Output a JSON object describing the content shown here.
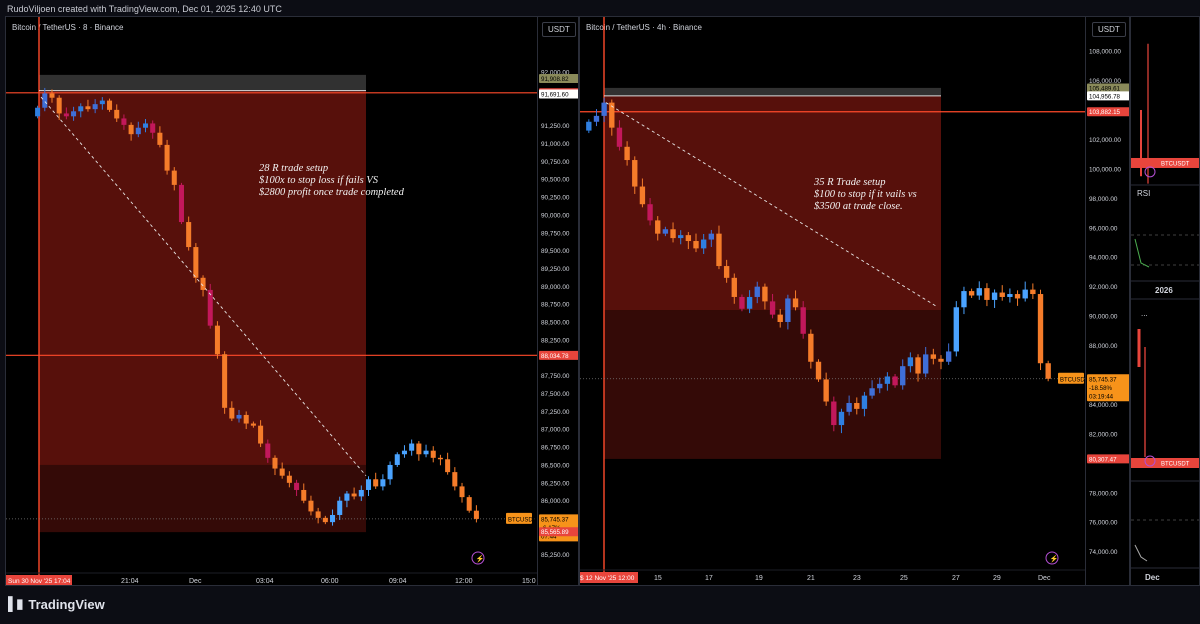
{
  "header": {
    "credit": "RudoViljoen created with TradingView.com, Dec 01, 2025 12:40 UTC"
  },
  "footer": {
    "brand": "TradingView"
  },
  "chart_data": [
    {
      "type": "candlestick",
      "title": "Bitcoin / TetherUS · 8 · Binance",
      "currency_label": "USDT",
      "y_ticks": [
        "92,000.00",
        "91,908.82",
        "91,708.89",
        "91,691.60",
        "91,250.00",
        "91,000.00",
        "90,750.00",
        "90,500.00",
        "90,250.00",
        "90,000.00",
        "89,750.00",
        "89,500.00",
        "89,250.00",
        "89,000.00",
        "88,750.00",
        "88,500.00",
        "88,250.00",
        "88,034.78",
        "87,750.00",
        "87,500.00",
        "87,250.00",
        "87,000.00",
        "86,750.00",
        "86,500.00",
        "86,250.00",
        "86,000.00",
        "85,745.37",
        "85,565.89",
        "85,250.00"
      ],
      "x_ticks": [
        "Sun 30 Nov '25   17:04",
        "21:04",
        "Dec",
        "03:04",
        "06:00",
        "09:04",
        "12:00",
        "15:0"
      ],
      "ylim": [
        85100,
        92350
      ],
      "price_labels": [
        {
          "text": "91,908.82",
          "bg": "#8a8a5a"
        },
        {
          "text": "91,708.89",
          "bg": "#e8453c"
        },
        {
          "text": "91,691.60",
          "bg": "#ffffff"
        },
        {
          "text": "88,034.78",
          "bg": "#e8453c"
        },
        {
          "text": "85,745.37\n-6.17%\n07:44",
          "bg": "#f7931a"
        },
        {
          "text": "85,565.89",
          "bg": "#e8453c"
        }
      ],
      "ticker": "BTCUSDT",
      "annotation": "28 R trade setup\n$100x to stop loss if fails VS\n$2800 profit once trade completed",
      "close_series": [
        91500,
        91700,
        91640,
        91420,
        91380,
        91450,
        91520,
        91480,
        91550,
        91600,
        91470,
        91350,
        91260,
        91130,
        91220,
        91280,
        91150,
        90980,
        90620,
        90420,
        89900,
        89550,
        89120,
        88950,
        88450,
        88050,
        87300,
        87150,
        87200,
        87080,
        87050,
        86800,
        86600,
        86450,
        86350,
        86250,
        86150,
        86000,
        85850,
        85760,
        85700,
        85800,
        86000,
        86100,
        86060,
        86150,
        86300,
        86200,
        86300,
        86500,
        86650,
        86700,
        86800,
        86650,
        86700,
        86600,
        86580,
        86400,
        86200,
        86050,
        85860,
        85745
      ]
    },
    {
      "type": "candlestick",
      "title": "Bitcoin / TetherUS · 4h · Binance",
      "currency_label": "USDT",
      "y_ticks": [
        "108,000.00",
        "106,000.00",
        "105,489.61",
        "104,956.78",
        "104,000.00",
        "103,882.15",
        "102,000.00",
        "100,000.00",
        "98,000.00",
        "96,000.00",
        "94,000.00",
        "92,000.00",
        "90,000.00",
        "88,000.00",
        "85,745.37",
        "84,000.00",
        "82,000.00",
        "80,307.47",
        "78,000.00",
        "76,000.00",
        "74,000.00"
      ],
      "x_ticks": [
        "$ 12 Nov '25   12:00",
        "15",
        "17",
        "19",
        "21",
        "23",
        "25",
        "27",
        "29",
        "Dec",
        "3"
      ],
      "ylim": [
        73300,
        109500
      ],
      "price_labels": [
        {
          "text": "105,489.61",
          "bg": "#8a8a5a"
        },
        {
          "text": "104,956.78",
          "bg": "#ffffff"
        },
        {
          "text": "103,882.15",
          "bg": "#e8453c"
        },
        {
          "text": "85,745.37\n-18.58%\n03:19:44",
          "bg": "#f7931a"
        },
        {
          "text": "80,307.47",
          "bg": "#e8453c"
        }
      ],
      "ticker": "BTCUSDT",
      "annotation": "35 R Trade setup\n$100 to stop if it vails vs\n$3500 at trade close.",
      "close_series": [
        103200,
        103600,
        104500,
        102800,
        101500,
        100600,
        98800,
        97600,
        96500,
        95600,
        95900,
        95300,
        95500,
        95100,
        94600,
        95200,
        95600,
        93400,
        92600,
        91300,
        90500,
        91300,
        92000,
        91000,
        90100,
        89600,
        91200,
        90600,
        88800,
        86900,
        85700,
        84200,
        82600,
        83500,
        84100,
        83700,
        84600,
        85100,
        85400,
        85900,
        85300,
        86600,
        87200,
        86100,
        87400,
        87100,
        86900,
        87600,
        90600,
        91700,
        91400,
        91900,
        91100,
        91600,
        91300,
        91500,
        91200,
        91800,
        91500,
        86800,
        85745
      ]
    }
  ],
  "side_panel": {
    "y_ticks_top": [
      "108,000.00",
      "106,000.00",
      "104,000.00",
      "102,000.00",
      "100,000.00",
      "98,000.00",
      "96,000.00",
      "94,000.00",
      "92,000.00",
      "90,000.00",
      "88,000.00",
      "86,000.00",
      "84,000.00",
      "82,000.00",
      "80,000.00",
      "78,000.00",
      "76,000.00",
      "74,000.00"
    ],
    "rsi_label": "RSI",
    "year_label": "2026",
    "ticker": "BTCUSDT",
    "x_tick": "Dec",
    "dots": "..."
  }
}
